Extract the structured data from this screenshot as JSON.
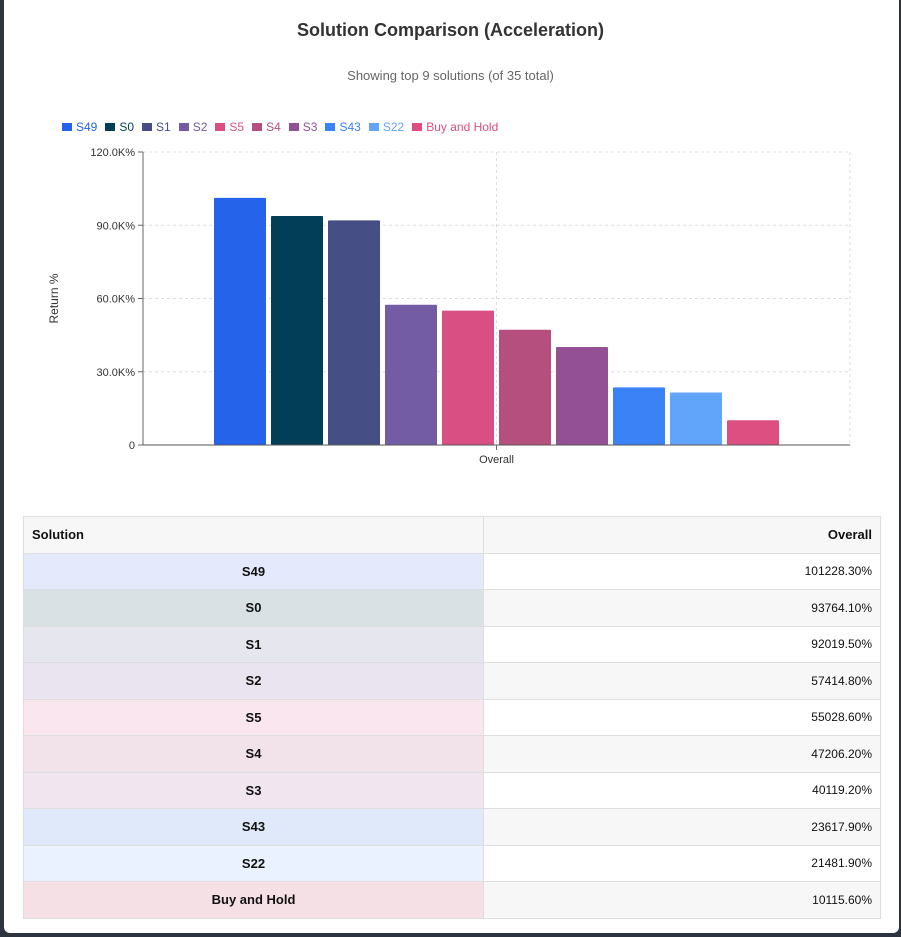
{
  "header": {
    "title": "Solution Comparison (Acceleration)",
    "subtitle": "Showing top 9 solutions (of 35 total)"
  },
  "chart_data": {
    "type": "bar",
    "categories": [
      "Overall"
    ],
    "xlabel": "Overall",
    "ylabel": "Return %",
    "ylim": [
      0,
      120000
    ],
    "yticks": [
      0,
      30000,
      60000,
      90000,
      120000
    ],
    "ytick_labels": [
      "0",
      "30.0K%",
      "60.0K%",
      "90.0K%",
      "120.0K%"
    ],
    "grid": true,
    "legend_position": "top-left",
    "series": [
      {
        "name": "S49",
        "values": [
          101228.3
        ],
        "color": "#2563eb"
      },
      {
        "name": "S0",
        "values": [
          93764.1
        ],
        "color": "#023e58"
      },
      {
        "name": "S1",
        "values": [
          92019.5
        ],
        "color": "#454e85"
      },
      {
        "name": "S2",
        "values": [
          57414.8
        ],
        "color": "#735ca4"
      },
      {
        "name": "S5",
        "values": [
          55028.6
        ],
        "color": "#d94f84"
      },
      {
        "name": "S4",
        "values": [
          47206.2
        ],
        "color": "#b5507e"
      },
      {
        "name": "S3",
        "values": [
          40119.2
        ],
        "color": "#935094"
      },
      {
        "name": "S43",
        "values": [
          23617.9
        ],
        "color": "#3b82f6"
      },
      {
        "name": "S22",
        "values": [
          21481.9
        ],
        "color": "#60a5fa"
      },
      {
        "name": "Buy and Hold",
        "values": [
          10115.6
        ],
        "color": "#dc4f80"
      }
    ]
  },
  "table": {
    "headers": {
      "solution": "Solution",
      "overall": "Overall"
    },
    "rows": [
      {
        "solution": "S49",
        "overall": "101228.30%",
        "bg": "#e4e9fb"
      },
      {
        "solution": "S0",
        "overall": "93764.10%",
        "bg": "#d9e1e5"
      },
      {
        "solution": "S1",
        "overall": "92019.50%",
        "bg": "#e5e6ee"
      },
      {
        "solution": "S2",
        "overall": "57414.80%",
        "bg": "#e9e4ef"
      },
      {
        "solution": "S5",
        "overall": "55028.60%",
        "bg": "#fae6ef"
      },
      {
        "solution": "S4",
        "overall": "47206.20%",
        "bg": "#f2e2e9"
      },
      {
        "solution": "S3",
        "overall": "40119.20%",
        "bg": "#f1e5f0"
      },
      {
        "solution": "S43",
        "overall": "23617.90%",
        "bg": "#e0e9fa"
      },
      {
        "solution": "S22",
        "overall": "21481.90%",
        "bg": "#e9f2fe"
      },
      {
        "solution": "Buy and Hold",
        "overall": "10115.60%",
        "bg": "#f5e0e6"
      }
    ]
  }
}
